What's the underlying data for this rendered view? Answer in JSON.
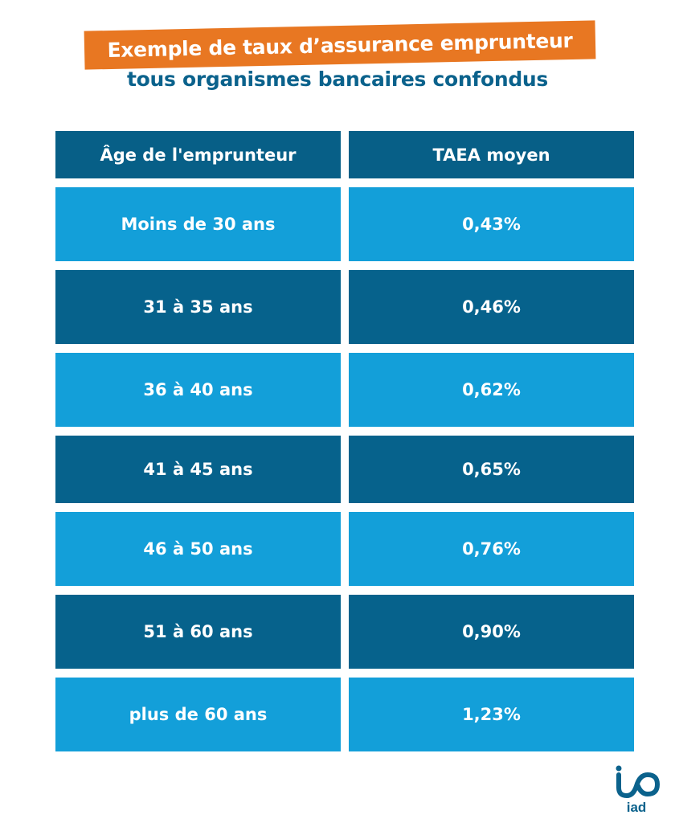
{
  "title": "Exemple de taux d’assurance emprunteur",
  "subtitle": "tous organismes bancaires confondus",
  "logo_text": "iad",
  "colors": {
    "orange": "#e87722",
    "dark_blue": "#06628c",
    "light_blue": "#139fd9"
  },
  "chart_data": {
    "type": "table",
    "title": "Exemple de taux d’assurance emprunteur",
    "subtitle": "tous organismes bancaires confondus",
    "columns": [
      "Âge de l'emprunteur",
      "TAEA moyen"
    ],
    "rows": [
      [
        "Moins de 30 ans",
        "0,43%"
      ],
      [
        "31 à 35 ans",
        "0,46%"
      ],
      [
        "36 à 40 ans",
        "0,62%"
      ],
      [
        "41 à 45 ans",
        "0,65%"
      ],
      [
        "46 à 50 ans",
        "0,76%"
      ],
      [
        "51 à 60 ans",
        "0,90%"
      ],
      [
        "plus de 60 ans",
        "1,23%"
      ]
    ],
    "values_percent": [
      0.43,
      0.46,
      0.62,
      0.65,
      0.76,
      0.9,
      1.23
    ]
  }
}
